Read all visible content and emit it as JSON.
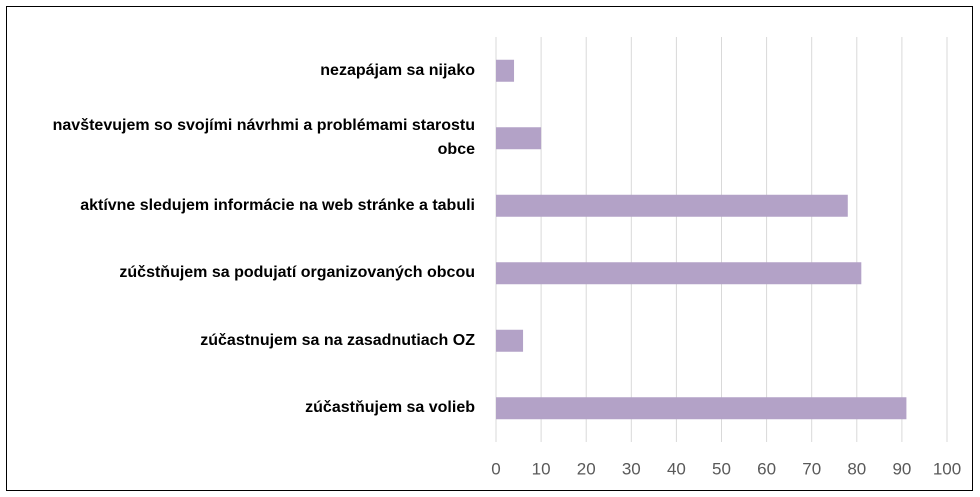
{
  "chart_data": {
    "type": "bar",
    "orientation": "horizontal",
    "categories": [
      "nezapájam sa nijako",
      "navštevujem so svojími návrhmi a problémami starostu obce",
      "aktívne sledujem informácie na web stránke a tabuli",
      "zúčstňujem sa podujatí organizovaných obcou",
      "zúčastnujem sa na zasadnutiach OZ",
      "zúčastňujem sa volieb"
    ],
    "values": [
      4,
      10,
      78,
      81,
      6,
      91
    ],
    "color": "#b3a2c7",
    "xlim": [
      0,
      100
    ],
    "xticks": [
      0,
      10,
      20,
      30,
      40,
      50,
      60,
      70,
      80,
      90,
      100
    ],
    "grid": true
  }
}
